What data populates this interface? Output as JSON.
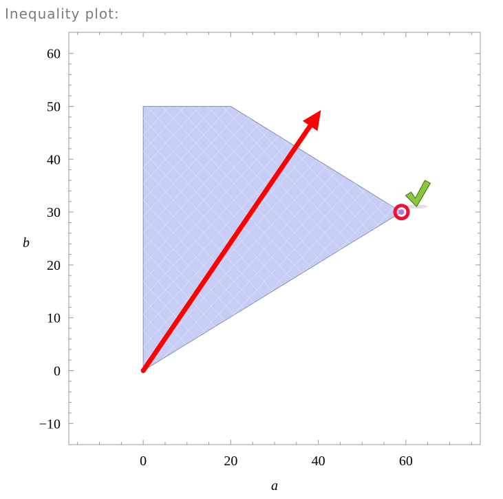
{
  "caption": "Inequality plot:",
  "chart_data": {
    "type": "region",
    "xlabel": "a",
    "ylabel": "b",
    "xlim": [
      -17,
      77
    ],
    "ylim": [
      -14,
      64
    ],
    "x_ticks": [
      0,
      20,
      40,
      60
    ],
    "y_ticks": [
      -10,
      0,
      10,
      20,
      30,
      40,
      50,
      60
    ],
    "x_tick_labels": [
      "0",
      "20",
      "40",
      "60"
    ],
    "y_tick_labels": [
      "−10",
      "0",
      "10",
      "20",
      "30",
      "40",
      "50",
      "60"
    ],
    "region": {
      "vertices": [
        [
          0,
          0
        ],
        [
          0,
          50
        ],
        [
          20,
          50
        ],
        [
          59,
          30
        ]
      ],
      "fill": "#c7cdf5",
      "stroke": "#8a8fb0"
    },
    "arrow": {
      "from": [
        0,
        0
      ],
      "to": [
        40.6,
        49.3
      ],
      "color": "#ff0000"
    },
    "optimum": {
      "point": [
        59,
        30
      ],
      "color": "#ee1133",
      "marker": "check-icon",
      "marker_color": "#8cc63f"
    }
  }
}
